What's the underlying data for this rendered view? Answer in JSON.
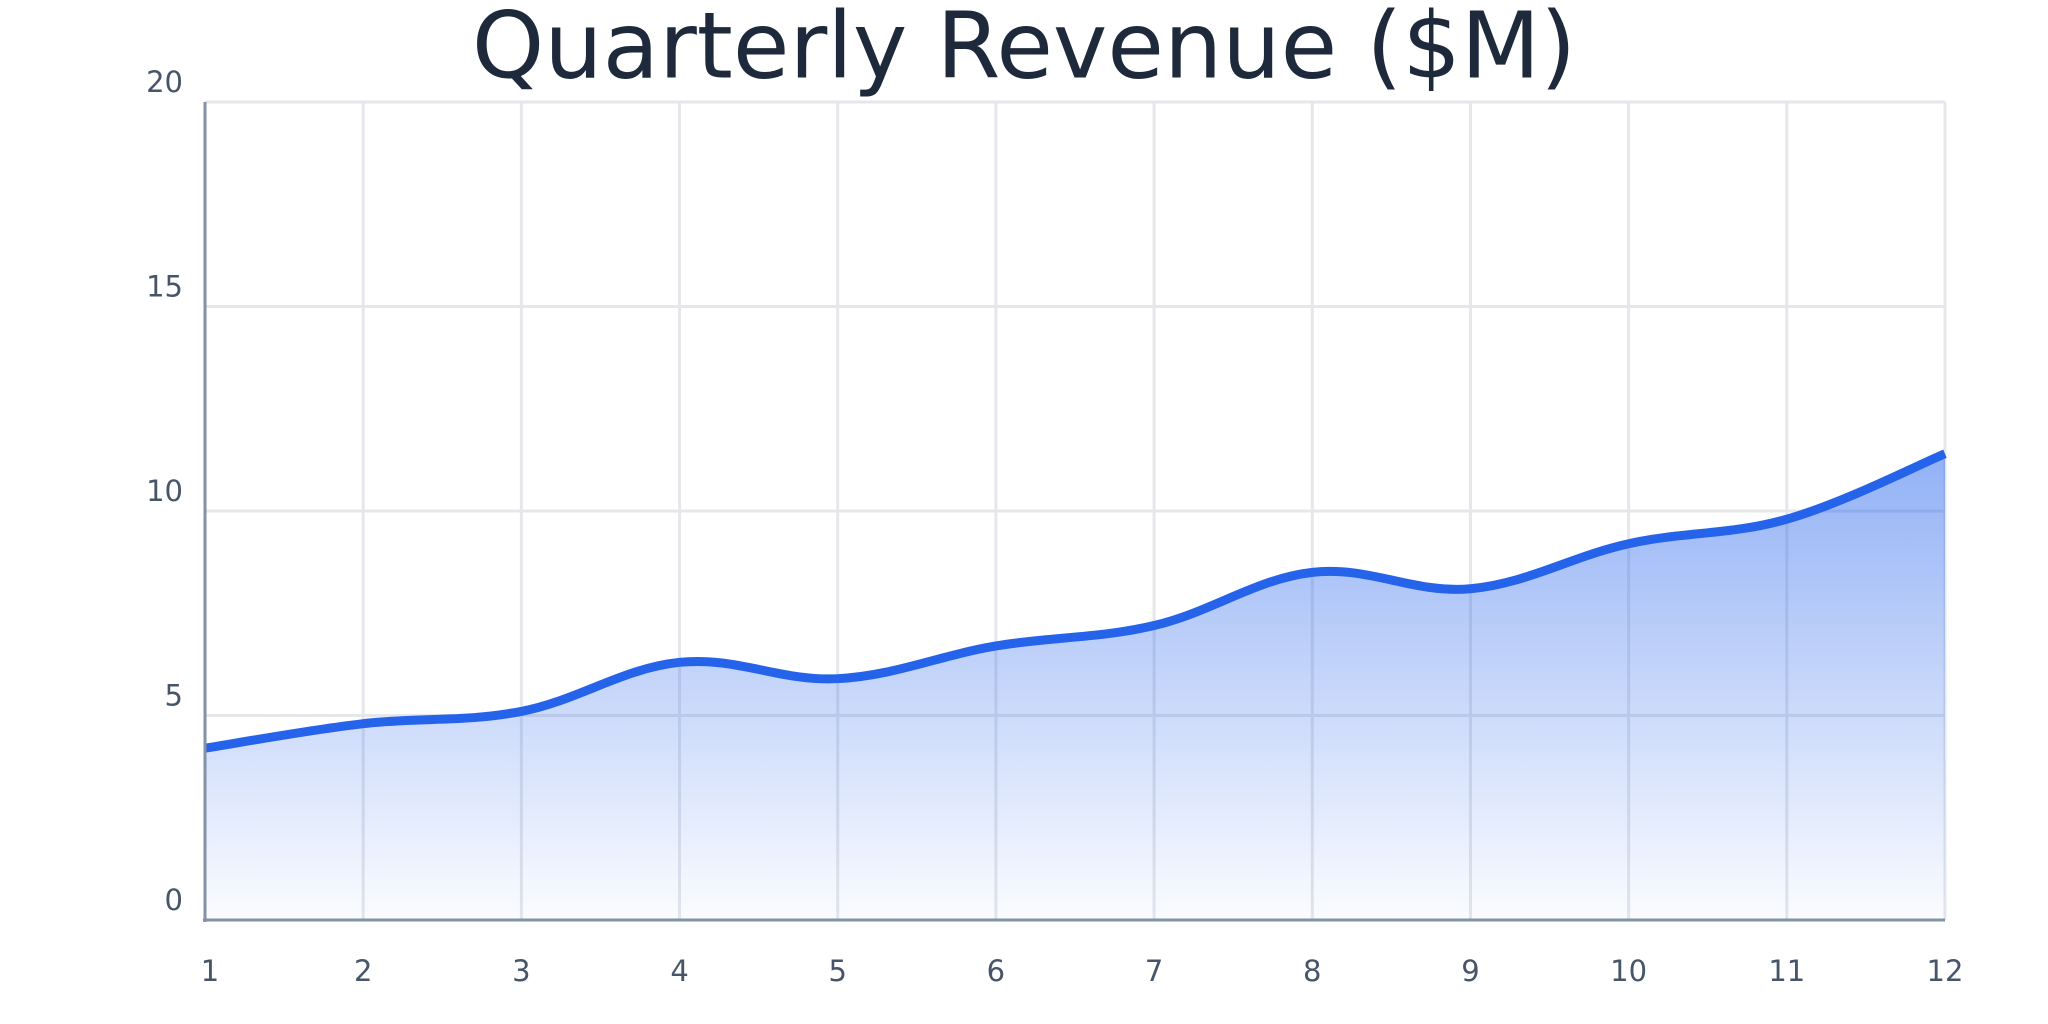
{
  "chart_data": {
    "type": "area",
    "title": "Quarterly Revenue ($M)",
    "x": [
      1,
      2,
      3,
      4,
      5,
      6,
      7,
      8,
      9,
      10,
      11,
      12
    ],
    "values": [
      4.2,
      4.8,
      5.1,
      6.3,
      5.9,
      6.7,
      7.2,
      8.5,
      8.1,
      9.2,
      9.8,
      11.4
    ],
    "color": "#2563eb",
    "xlim": [
      1,
      12
    ],
    "xticks": [
      1,
      2,
      3,
      4,
      5,
      6,
      7,
      8,
      9,
      10,
      11,
      12
    ],
    "ylim": [
      0,
      20
    ],
    "yticks": [
      0,
      5,
      10,
      15,
      20
    ],
    "grid": true
  }
}
